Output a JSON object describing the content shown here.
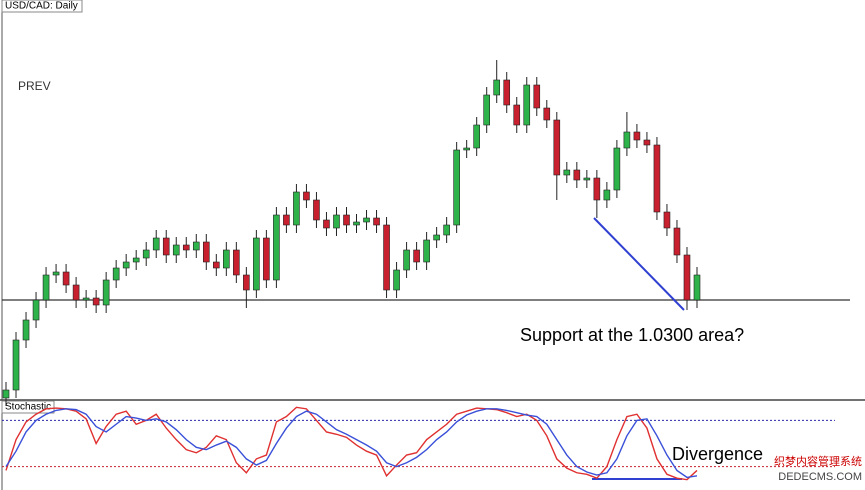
{
  "chart_data": [
    {
      "type": "candlestick",
      "title": "USD/CAD: Daily",
      "label": "PREV",
      "annotation": "Support at the 1.0300 area?",
      "support": 1.03,
      "support_color": "#333333",
      "up_color": "#2db34a",
      "down_color": "#c8202f",
      "ylim": [
        1.02,
        1.06
      ],
      "open": [
        1.0202,
        1.021,
        1.026,
        1.028,
        1.03,
        1.0325,
        1.0328,
        1.0315,
        1.03,
        1.0302,
        1.0295,
        1.032,
        1.0332,
        1.0338,
        1.0342,
        1.035,
        1.0362,
        1.0345,
        1.0355,
        1.035,
        1.0358,
        1.0338,
        1.0332,
        1.035,
        1.0325,
        1.031,
        1.0362,
        1.032,
        1.0385,
        1.0375,
        1.0408,
        1.04,
        1.038,
        1.0372,
        1.0385,
        1.0375,
        1.0378,
        1.0382,
        1.0375,
        1.031,
        1.033,
        1.035,
        1.0338,
        1.036,
        1.0365,
        1.0375,
        1.045,
        1.0452,
        1.0475,
        1.0505,
        1.052,
        1.0495,
        1.0475,
        1.0515,
        1.0492,
        1.048,
        1.0425,
        1.043,
        1.042,
        1.0422,
        1.04,
        1.041,
        1.0452,
        1.0468,
        1.046,
        1.0455,
        1.0388,
        1.0372,
        1.0345,
        1.03
      ],
      "high": [
        1.0218,
        1.0268,
        1.0288,
        1.0308,
        1.0333,
        1.0336,
        1.0336,
        1.0323,
        1.031,
        1.031,
        1.0328,
        1.034,
        1.0346,
        1.035,
        1.0358,
        1.037,
        1.037,
        1.0363,
        1.0363,
        1.0366,
        1.0366,
        1.0346,
        1.0358,
        1.0358,
        1.0333,
        1.037,
        1.037,
        1.0393,
        1.0393,
        1.0416,
        1.0416,
        1.0408,
        1.0388,
        1.0393,
        1.0393,
        1.0386,
        1.039,
        1.039,
        1.0383,
        1.0338,
        1.0358,
        1.0358,
        1.0368,
        1.0373,
        1.0383,
        1.0458,
        1.046,
        1.0483,
        1.0513,
        1.054,
        1.0528,
        1.0503,
        1.0523,
        1.0523,
        1.05,
        1.0488,
        1.0438,
        1.0438,
        1.043,
        1.043,
        1.0418,
        1.046,
        1.0488,
        1.0476,
        1.0468,
        1.0463,
        1.0396,
        1.038,
        1.0353,
        1.0333
      ],
      "low": [
        1.0194,
        1.0202,
        1.0252,
        1.0272,
        1.0292,
        1.0317,
        1.0307,
        1.0292,
        1.0292,
        1.0287,
        1.0287,
        1.0312,
        1.0324,
        1.033,
        1.0334,
        1.0342,
        1.0337,
        1.0337,
        1.0342,
        1.0342,
        1.033,
        1.0324,
        1.0324,
        1.0317,
        1.0292,
        1.0302,
        1.0312,
        1.0312,
        1.0367,
        1.0367,
        1.0392,
        1.0372,
        1.0364,
        1.0364,
        1.0367,
        1.0367,
        1.037,
        1.0367,
        1.0302,
        1.0302,
        1.0322,
        1.033,
        1.033,
        1.0352,
        1.0357,
        1.0367,
        1.0442,
        1.0444,
        1.0467,
        1.0497,
        1.0487,
        1.0467,
        1.0467,
        1.0484,
        1.0472,
        1.04,
        1.0417,
        1.0412,
        1.0412,
        1.0382,
        1.0392,
        1.0402,
        1.0444,
        1.0452,
        1.0447,
        1.038,
        1.0364,
        1.0337,
        1.029,
        1.0292
      ],
      "close": [
        1.021,
        1.026,
        1.028,
        1.03,
        1.0325,
        1.0328,
        1.0315,
        1.03,
        1.0302,
        1.0295,
        1.032,
        1.0332,
        1.0338,
        1.0342,
        1.035,
        1.0362,
        1.0345,
        1.0355,
        1.035,
        1.0358,
        1.0338,
        1.0332,
        1.035,
        1.0325,
        1.031,
        1.0362,
        1.032,
        1.0385,
        1.0375,
        1.0408,
        1.04,
        1.038,
        1.0372,
        1.0385,
        1.0375,
        1.0378,
        1.0382,
        1.0375,
        1.031,
        1.033,
        1.035,
        1.0338,
        1.036,
        1.0365,
        1.0375,
        1.045,
        1.0452,
        1.0475,
        1.0505,
        1.052,
        1.0495,
        1.0475,
        1.0515,
        1.0492,
        1.048,
        1.0425,
        1.043,
        1.042,
        1.0422,
        1.04,
        1.041,
        1.0452,
        1.0468,
        1.046,
        1.0455,
        1.0388,
        1.0372,
        1.0345,
        1.03,
        1.0325
      ]
    },
    {
      "type": "line",
      "title": "Stochastic",
      "annotation": "Divergence",
      "ylim": [
        0,
        100
      ],
      "levels": [
        80,
        20
      ],
      "level_colors": [
        "#2a2aa8",
        "#c8202f"
      ],
      "series": [
        {
          "color": "#e03030",
          "values": [
            15,
            55,
            78,
            88,
            95,
            96,
            95,
            92,
            82,
            50,
            72,
            88,
            92,
            75,
            80,
            88,
            70,
            55,
            42,
            38,
            45,
            60,
            55,
            25,
            12,
            30,
            35,
            78,
            85,
            97,
            95,
            80,
            65,
            62,
            58,
            48,
            40,
            35,
            8,
            22,
            35,
            38,
            55,
            65,
            75,
            88,
            92,
            96,
            95,
            94,
            90,
            85,
            88,
            80,
            60,
            30,
            18,
            12,
            10,
            5,
            20,
            55,
            85,
            88,
            70,
            30,
            10,
            5,
            3,
            15
          ]
        },
        {
          "color": "#3a50d8",
          "values": [
            20,
            40,
            65,
            80,
            88,
            93,
            95,
            94,
            88,
            72,
            65,
            75,
            85,
            83,
            80,
            82,
            78,
            68,
            55,
            45,
            42,
            48,
            53,
            45,
            30,
            22,
            28,
            50,
            70,
            85,
            92,
            88,
            78,
            68,
            62,
            55,
            48,
            40,
            25,
            20,
            25,
            32,
            42,
            55,
            65,
            78,
            87,
            92,
            95,
            95,
            93,
            90,
            87,
            85,
            75,
            55,
            35,
            20,
            13,
            9,
            12,
            30,
            60,
            80,
            82,
            60,
            35,
            15,
            6,
            8
          ]
        }
      ]
    }
  ],
  "watermark": [
    "织梦内容管理系统",
    "DEDECMS.COM"
  ]
}
